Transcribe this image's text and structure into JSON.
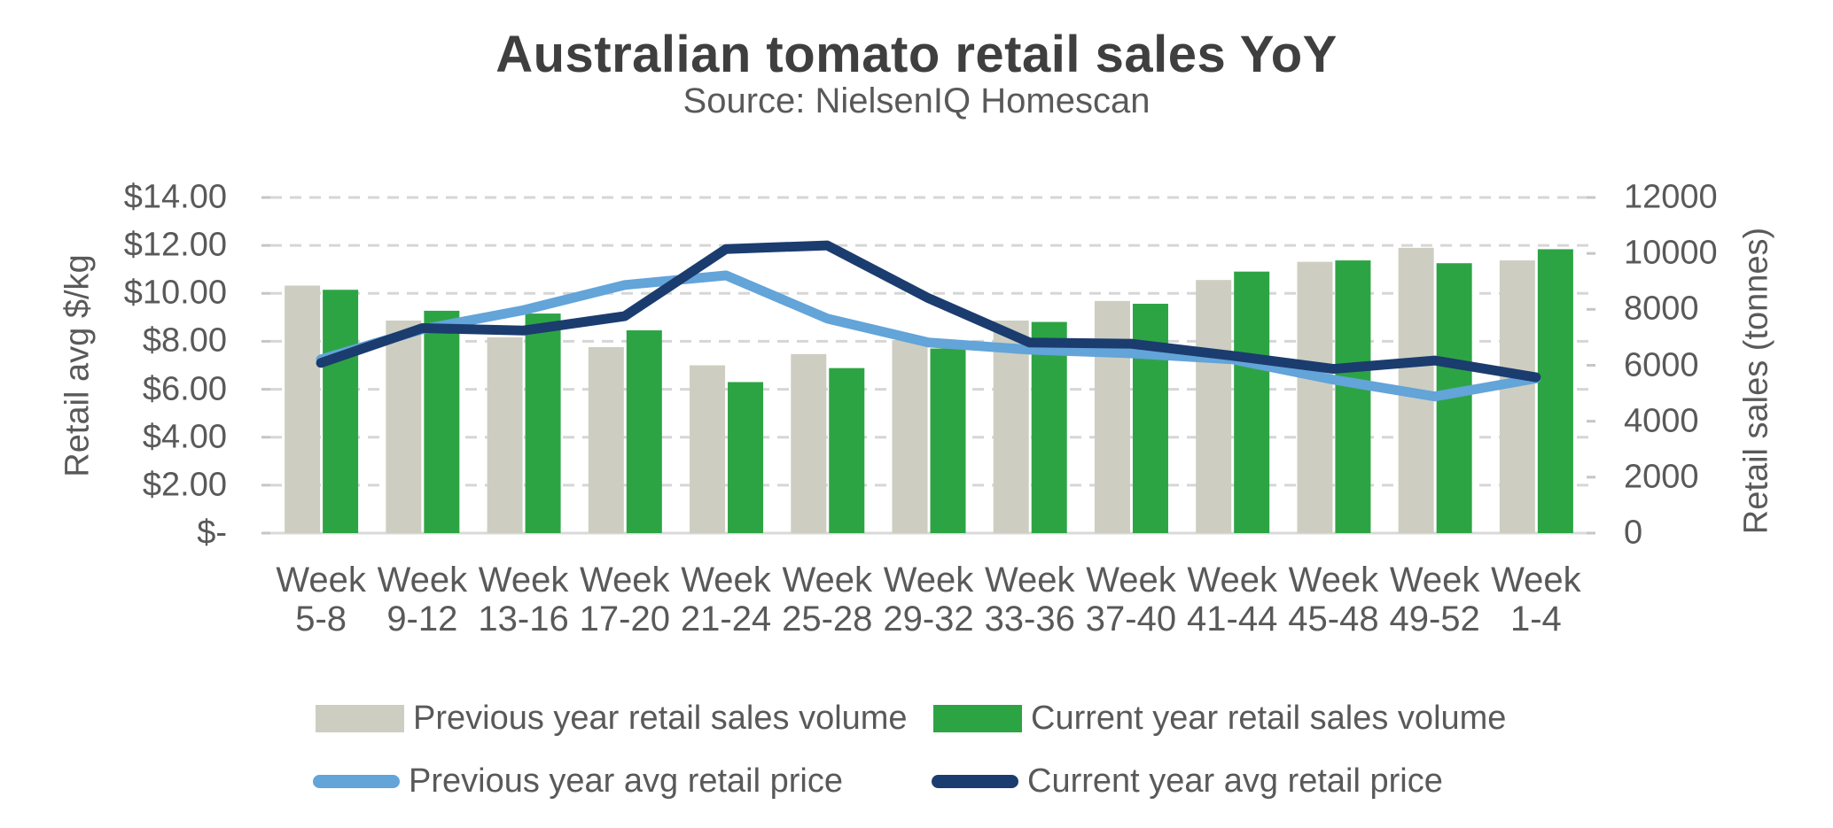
{
  "title": "Australian tomato retail sales YoY",
  "subtitle": "Source: NielsenIQ Homescan",
  "left_axis": {
    "title": "Retail avg $/kg",
    "tick_labels_top_to_bottom": [
      "$14.00",
      "$12.00",
      "$10.00",
      "$8.00",
      "$6.00",
      "$4.00",
      "$2.00",
      "$-"
    ],
    "min": 0,
    "max": 14,
    "step": 2
  },
  "right_axis": {
    "title": "Retail sales (tonnes)",
    "tick_labels_top_to_bottom": [
      "12000",
      "10000",
      "8000",
      "6000",
      "4000",
      "2000",
      "0"
    ],
    "min": 0,
    "max": 12000,
    "step": 2000
  },
  "colors": {
    "prev_volume": "#cdcec1",
    "curr_volume": "#2da444",
    "prev_price": "#63a4d9",
    "curr_price": "#1b3c6e",
    "gridline": "#d6d6d6",
    "axis_line": "#d9d9d9",
    "tick_mark": "#c6c6c6",
    "axis_text": "#595959",
    "title_text": "#3f3f3f"
  },
  "chart_data": {
    "type": "combo-bar-line",
    "grid": "horizontal-dashed",
    "legend_position": "bottom",
    "categories": [
      "Week 5-8",
      "Week 9-12",
      "Week 13-16",
      "Week 17-20",
      "Week 21-24",
      "Week 25-28",
      "Week 29-32",
      "Week 33-36",
      "Week 37-40",
      "Week 41-44",
      "Week 45-48",
      "Week 49-52",
      "Week 1-4"
    ],
    "left_ylim": [
      0,
      14
    ],
    "right_ylim": [
      0,
      12000
    ],
    "series": [
      {
        "name": "Previous year retail sales volume",
        "type": "bar",
        "axis": "right",
        "unit": "tonnes",
        "color_key": "prev_volume",
        "values": [
          8850,
          7600,
          7000,
          6650,
          6000,
          6400,
          6900,
          7600,
          8300,
          9050,
          9700,
          10200,
          9750
        ]
      },
      {
        "name": "Current year retail sales volume",
        "type": "bar",
        "axis": "right",
        "unit": "tonnes",
        "color_key": "curr_volume",
        "values": [
          8700,
          7950,
          7850,
          7250,
          5400,
          5900,
          6600,
          7550,
          8200,
          9350,
          9750,
          9650,
          10150
        ]
      },
      {
        "name": "Previous year avg retail price",
        "type": "line",
        "axis": "left",
        "unit": "$/kg",
        "color_key": "prev_price",
        "values": [
          7.25,
          8.5,
          9.3,
          10.35,
          10.75,
          8.95,
          7.95,
          7.65,
          7.5,
          7.25,
          6.4,
          5.7,
          6.45
        ]
      },
      {
        "name": "Current year avg retail price",
        "type": "line",
        "axis": "left",
        "unit": "$/kg",
        "color_key": "curr_price",
        "values": [
          7.1,
          8.55,
          8.45,
          9.05,
          11.85,
          12.0,
          9.8,
          7.95,
          7.9,
          7.4,
          6.85,
          7.2,
          6.5
        ]
      }
    ]
  }
}
